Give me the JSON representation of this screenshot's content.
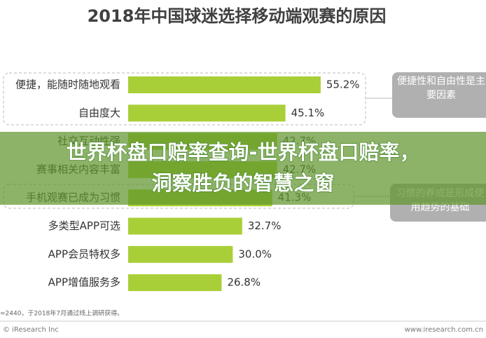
{
  "chart_data": {
    "type": "hbar",
    "title": "2018年中国球迷选择移动端观赛的原因",
    "categories": [
      "便捷，能随时随地观看",
      "自由度大",
      "社交互动性强",
      "赛事相关内容丰富",
      "手机观赛已成为习惯",
      "多类型APP可选",
      "APP会员特权多",
      "APP增值服务多"
    ],
    "values": [
      55.2,
      45.1,
      42.7,
      42.7,
      41.3,
      32.7,
      30.0,
      26.8
    ],
    "value_labels": [
      "55.2%",
      "45.1%",
      "42.7%",
      "42.7%",
      "41.3%",
      "32.7%",
      "30.0%",
      "26.8%"
    ],
    "color": "#a9cf38",
    "annotations": [
      "便捷性和自由性是主要因素",
      "习惯的养成是形成使用趋势的基础"
    ],
    "note": "=2440，于2018年7月通过线上调研获得。",
    "footer_left": "© iResearch Inc",
    "footer_right": "www.iresearch.com.cn"
  },
  "overlay": [
    "世界杯盘口赔率查询-世界杯盘口赔率，",
    "洞察胜负的智慧之窗"
  ]
}
